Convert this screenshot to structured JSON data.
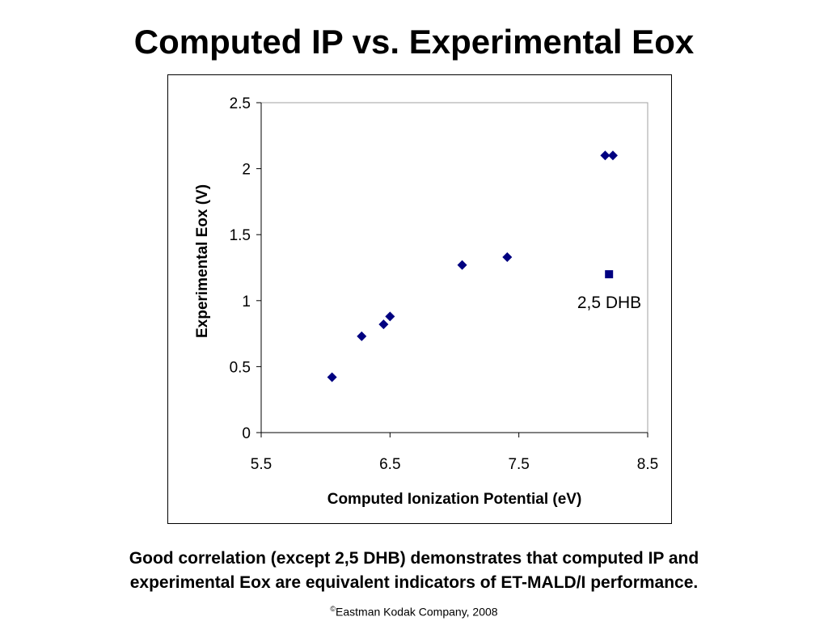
{
  "slide": {
    "title": "Computed IP vs. Experimental Eox",
    "caption_line1": "Good correlation (except 2,5 DHB) demonstrates that computed IP and",
    "caption_line2": "experimental Eox are equivalent indicators of ET-MALD/I performance.",
    "copyright_symbol": "©",
    "copyright_text": "Eastman Kodak Company, 2008"
  },
  "chart_data": {
    "type": "scatter",
    "title": "",
    "xlabel": "Computed Ionization Potential (eV)",
    "ylabel": "Experimental Eox (V)",
    "xlim": [
      5.5,
      8.5
    ],
    "ylim": [
      0,
      2.5
    ],
    "xticks": [
      "5.5",
      "6.5",
      "7.5",
      "8.5"
    ],
    "yticks": [
      "0",
      "0.5",
      "1",
      "1.5",
      "2",
      "2.5"
    ],
    "grid": false,
    "legend": "none",
    "color": "#000080",
    "series": [
      {
        "marker": "diamond",
        "points": [
          {
            "x": 6.05,
            "y": 0.42
          },
          {
            "x": 6.28,
            "y": 0.73
          },
          {
            "x": 6.45,
            "y": 0.82
          },
          {
            "x": 6.5,
            "y": 0.88
          },
          {
            "x": 7.06,
            "y": 1.27
          },
          {
            "x": 7.41,
            "y": 1.33
          },
          {
            "x": 8.17,
            "y": 2.1
          },
          {
            "x": 8.23,
            "y": 2.1
          }
        ]
      },
      {
        "marker": "square",
        "points": [
          {
            "x": 8.2,
            "y": 1.2
          }
        ]
      }
    ],
    "annotations": [
      {
        "text": "2,5 DHB",
        "x": 8.2,
        "y": 1.2
      }
    ]
  }
}
